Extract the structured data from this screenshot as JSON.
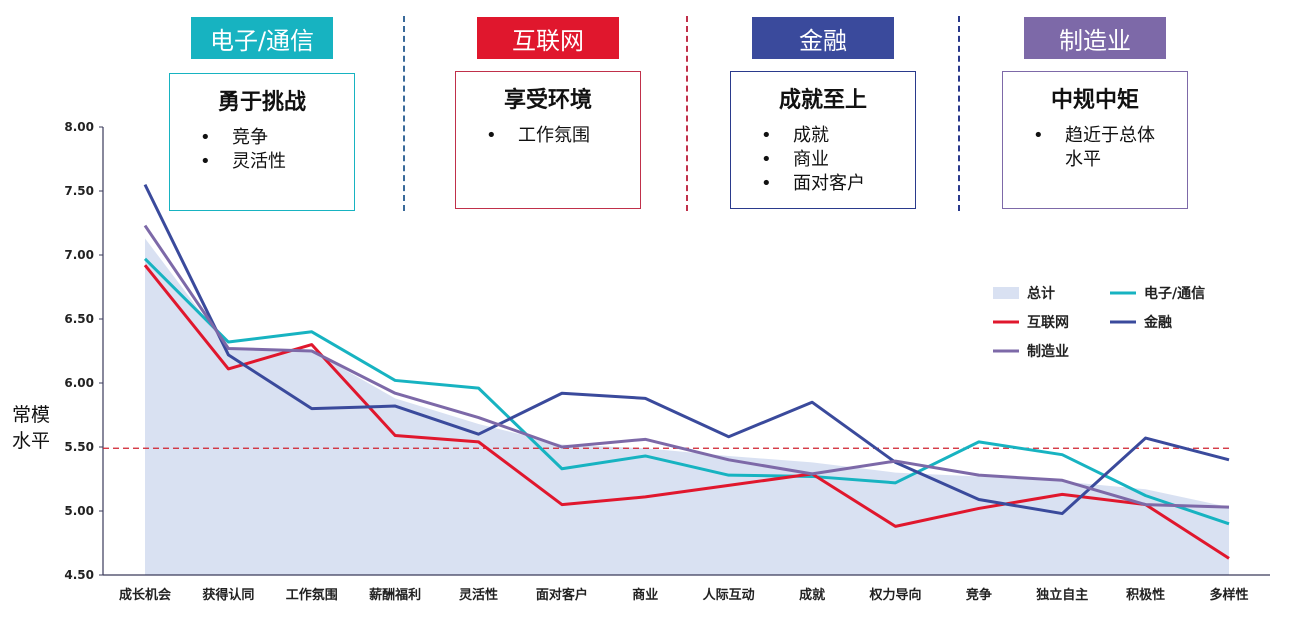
{
  "header": {
    "groups": [
      {
        "tag": "电子/通信",
        "color": "#17b3c1",
        "title": "勇于挑战",
        "bullets": [
          "竞争",
          "灵活性"
        ]
      },
      {
        "tag": "互联网",
        "color": "#e0172d",
        "title": "享受环境",
        "bullets": [
          "工作氛围"
        ]
      },
      {
        "tag": "金融",
        "color": "#3a4a9c",
        "title": "成就至上",
        "bullets": [
          "成就",
          "商业",
          "面对客户"
        ]
      },
      {
        "tag": "制造业",
        "color": "#7d69a8",
        "title": "中规中矩",
        "bullets": [
          "趋近于总体水平"
        ]
      }
    ],
    "bullet_glyph": "•"
  },
  "chart_data": {
    "type": "line",
    "ylabel": "常模水平",
    "ylim": [
      4.5,
      8.0
    ],
    "yticks": [
      "4.50",
      "5.00",
      "5.50",
      "6.00",
      "6.50",
      "7.00",
      "7.50",
      "8.00"
    ],
    "reference_line": 5.49,
    "categories": [
      "成长机会",
      "获得认同",
      "工作氛围",
      "薪酬福利",
      "灵活性",
      "面对客户",
      "商业",
      "人际互动",
      "成就",
      "权力导向",
      "竞争",
      "独立自主",
      "积极性",
      "多样性"
    ],
    "series": [
      {
        "name": "总计",
        "type": "area",
        "color": "#d9e1f2",
        "values": [
          7.13,
          6.27,
          6.25,
          5.88,
          5.68,
          5.52,
          5.49,
          5.43,
          5.38,
          5.3,
          5.27,
          5.23,
          5.17,
          5.03
        ]
      },
      {
        "name": "电子/通信",
        "color": "#17b3c1",
        "values": [
          6.97,
          6.32,
          6.4,
          6.02,
          5.96,
          5.33,
          5.43,
          5.28,
          5.27,
          5.22,
          5.54,
          5.44,
          5.12,
          4.9
        ]
      },
      {
        "name": "互联网",
        "color": "#e0172d",
        "values": [
          6.92,
          6.11,
          6.3,
          5.59,
          5.54,
          5.05,
          5.11,
          5.2,
          5.29,
          4.88,
          5.02,
          5.13,
          5.05,
          4.63
        ]
      },
      {
        "name": "金融",
        "color": "#3a4a9c",
        "values": [
          7.55,
          6.22,
          5.8,
          5.82,
          5.6,
          5.92,
          5.88,
          5.58,
          5.85,
          5.38,
          5.09,
          4.98,
          5.57,
          5.4
        ]
      },
      {
        "name": "制造业",
        "color": "#7d69a8",
        "values": [
          7.23,
          6.27,
          6.25,
          5.92,
          5.73,
          5.5,
          5.56,
          5.4,
          5.29,
          5.39,
          5.28,
          5.24,
          5.05,
          5.03
        ]
      }
    ],
    "legend": "right-middle",
    "grid": false
  }
}
